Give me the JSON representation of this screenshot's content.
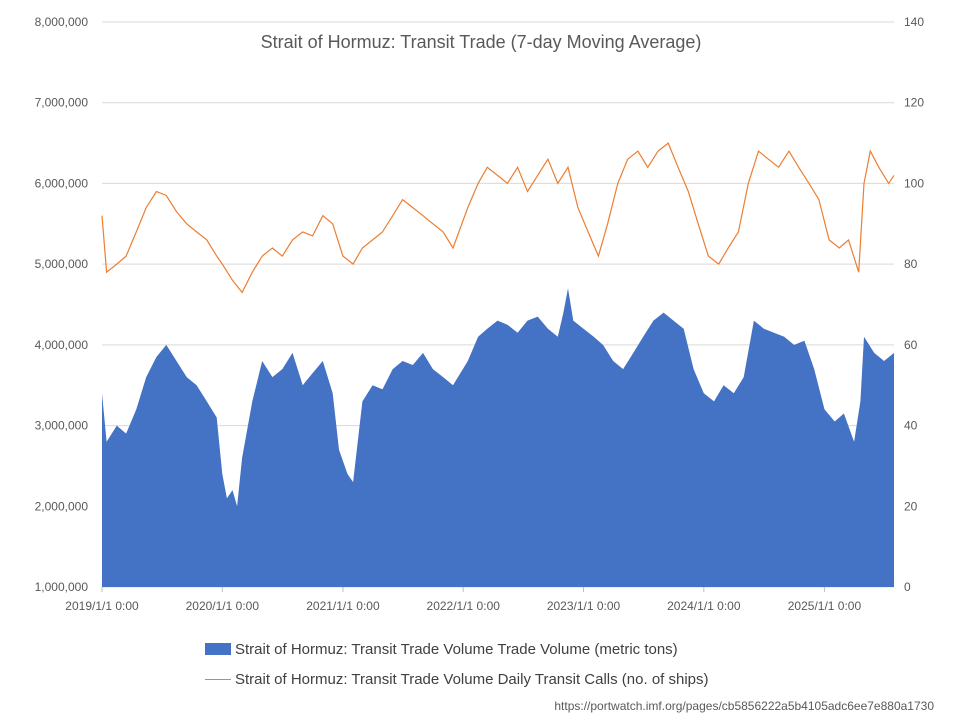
{
  "chart_data": {
    "type": "bar+line",
    "title": "Strait of Hormuz: Transit Trade (7-day Moving Average)",
    "x_tick_labels": [
      "2019/1/1 0:00",
      "2020/1/1 0:00",
      "2021/1/1 0:00",
      "2022/1/1 0:00",
      "2023/1/1 0:00",
      "2024/1/1 0:00",
      "2025/1/1 0:00"
    ],
    "x_range": [
      "2019-01-01",
      "2025-07-31"
    ],
    "y_left": {
      "min": 1000000,
      "max": 8000000,
      "step": 1000000,
      "tick_labels": [
        "1,000,000",
        "2,000,000",
        "3,000,000",
        "4,000,000",
        "5,000,000",
        "6,000,000",
        "7,000,000",
        "8,000,000"
      ]
    },
    "y_right": {
      "min": 0,
      "max": 140,
      "step": 20,
      "tick_labels": [
        "0",
        "20",
        "40",
        "60",
        "80",
        "100",
        "120",
        "140"
      ]
    },
    "grid": true,
    "legend_position": "bottom",
    "series": [
      {
        "name": "Strait of Hormuz: Transit Trade Volume Trade Volume (metric tons)",
        "type": "bar",
        "axis": "left",
        "color": "#4472C4",
        "points": [
          [
            "2019-01-01",
            3400000
          ],
          [
            "2019-01-15",
            2800000
          ],
          [
            "2019-02-15",
            3000000
          ],
          [
            "2019-03-15",
            2900000
          ],
          [
            "2019-04-15",
            3200000
          ],
          [
            "2019-05-15",
            3600000
          ],
          [
            "2019-06-15",
            3850000
          ],
          [
            "2019-07-15",
            4000000
          ],
          [
            "2019-08-15",
            3800000
          ],
          [
            "2019-09-15",
            3600000
          ],
          [
            "2019-10-15",
            3500000
          ],
          [
            "2019-11-15",
            3300000
          ],
          [
            "2019-12-15",
            3100000
          ],
          [
            "2020-01-01",
            2400000
          ],
          [
            "2020-01-15",
            2100000
          ],
          [
            "2020-02-01",
            2200000
          ],
          [
            "2020-02-15",
            2000000
          ],
          [
            "2020-03-01",
            2600000
          ],
          [
            "2020-04-01",
            3300000
          ],
          [
            "2020-05-01",
            3800000
          ],
          [
            "2020-06-01",
            3600000
          ],
          [
            "2020-07-01",
            3700000
          ],
          [
            "2020-08-01",
            3900000
          ],
          [
            "2020-09-01",
            3500000
          ],
          [
            "2020-10-01",
            3650000
          ],
          [
            "2020-11-01",
            3800000
          ],
          [
            "2020-12-01",
            3400000
          ],
          [
            "2020-12-20",
            2700000
          ],
          [
            "2021-01-15",
            2400000
          ],
          [
            "2021-02-01",
            2300000
          ],
          [
            "2021-03-01",
            3300000
          ],
          [
            "2021-04-01",
            3500000
          ],
          [
            "2021-05-01",
            3450000
          ],
          [
            "2021-06-01",
            3700000
          ],
          [
            "2021-07-01",
            3800000
          ],
          [
            "2021-08-01",
            3750000
          ],
          [
            "2021-09-01",
            3900000
          ],
          [
            "2021-10-01",
            3700000
          ],
          [
            "2021-11-01",
            3600000
          ],
          [
            "2021-12-01",
            3500000
          ],
          [
            "2022-01-15",
            3800000
          ],
          [
            "2022-02-15",
            4100000
          ],
          [
            "2022-03-15",
            4200000
          ],
          [
            "2022-04-15",
            4300000
          ],
          [
            "2022-05-15",
            4250000
          ],
          [
            "2022-06-15",
            4150000
          ],
          [
            "2022-07-15",
            4300000
          ],
          [
            "2022-08-15",
            4350000
          ],
          [
            "2022-09-15",
            4200000
          ],
          [
            "2022-10-15",
            4100000
          ],
          [
            "2022-11-01",
            4400000
          ],
          [
            "2022-11-15",
            4700000
          ],
          [
            "2022-12-01",
            4300000
          ],
          [
            "2023-01-01",
            4200000
          ],
          [
            "2023-02-01",
            4100000
          ],
          [
            "2023-03-01",
            4000000
          ],
          [
            "2023-04-01",
            3800000
          ],
          [
            "2023-05-01",
            3700000
          ],
          [
            "2023-06-01",
            3900000
          ],
          [
            "2023-07-01",
            4100000
          ],
          [
            "2023-08-01",
            4300000
          ],
          [
            "2023-09-01",
            4400000
          ],
          [
            "2023-10-01",
            4300000
          ],
          [
            "2023-11-01",
            4200000
          ],
          [
            "2023-12-01",
            3700000
          ],
          [
            "2024-01-01",
            3400000
          ],
          [
            "2024-02-01",
            3300000
          ],
          [
            "2024-03-01",
            3500000
          ],
          [
            "2024-04-01",
            3400000
          ],
          [
            "2024-05-01",
            3600000
          ],
          [
            "2024-06-01",
            4300000
          ],
          [
            "2024-07-01",
            4200000
          ],
          [
            "2024-08-01",
            4150000
          ],
          [
            "2024-09-01",
            4100000
          ],
          [
            "2024-10-01",
            4000000
          ],
          [
            "2024-11-01",
            4050000
          ],
          [
            "2024-12-01",
            3700000
          ],
          [
            "2025-01-01",
            3200000
          ],
          [
            "2025-02-01",
            3050000
          ],
          [
            "2025-03-01",
            3150000
          ],
          [
            "2025-04-01",
            2800000
          ],
          [
            "2025-04-20",
            3300000
          ],
          [
            "2025-05-01",
            4100000
          ],
          [
            "2025-06-01",
            3900000
          ],
          [
            "2025-07-01",
            3800000
          ],
          [
            "2025-07-31",
            3900000
          ]
        ]
      },
      {
        "name": "Strait of Hormuz: Transit Trade Volume Daily Transit Calls (no. of ships)",
        "type": "line",
        "axis": "right",
        "color": "#ED7D31",
        "points": [
          [
            "2019-01-01",
            92
          ],
          [
            "2019-01-15",
            78
          ],
          [
            "2019-02-15",
            80
          ],
          [
            "2019-03-15",
            82
          ],
          [
            "2019-04-15",
            88
          ],
          [
            "2019-05-15",
            94
          ],
          [
            "2019-06-15",
            98
          ],
          [
            "2019-07-15",
            97
          ],
          [
            "2019-08-15",
            93
          ],
          [
            "2019-09-15",
            90
          ],
          [
            "2019-10-15",
            88
          ],
          [
            "2019-11-15",
            86
          ],
          [
            "2019-12-15",
            82
          ],
          [
            "2020-01-01",
            80
          ],
          [
            "2020-02-01",
            76
          ],
          [
            "2020-03-01",
            73
          ],
          [
            "2020-04-01",
            78
          ],
          [
            "2020-05-01",
            82
          ],
          [
            "2020-06-01",
            84
          ],
          [
            "2020-07-01",
            82
          ],
          [
            "2020-08-01",
            86
          ],
          [
            "2020-09-01",
            88
          ],
          [
            "2020-10-01",
            87
          ],
          [
            "2020-11-01",
            92
          ],
          [
            "2020-12-01",
            90
          ],
          [
            "2021-01-01",
            82
          ],
          [
            "2021-02-01",
            80
          ],
          [
            "2021-03-01",
            84
          ],
          [
            "2021-04-01",
            86
          ],
          [
            "2021-05-01",
            88
          ],
          [
            "2021-06-01",
            92
          ],
          [
            "2021-07-01",
            96
          ],
          [
            "2021-08-01",
            94
          ],
          [
            "2021-09-01",
            92
          ],
          [
            "2021-10-01",
            90
          ],
          [
            "2021-11-01",
            88
          ],
          [
            "2021-12-01",
            84
          ],
          [
            "2022-01-15",
            94
          ],
          [
            "2022-02-15",
            100
          ],
          [
            "2022-03-15",
            104
          ],
          [
            "2022-04-15",
            102
          ],
          [
            "2022-05-15",
            100
          ],
          [
            "2022-06-15",
            104
          ],
          [
            "2022-07-15",
            98
          ],
          [
            "2022-08-15",
            102
          ],
          [
            "2022-09-15",
            106
          ],
          [
            "2022-10-15",
            100
          ],
          [
            "2022-11-15",
            104
          ],
          [
            "2022-12-15",
            94
          ],
          [
            "2023-01-15",
            88
          ],
          [
            "2023-02-15",
            82
          ],
          [
            "2023-03-15",
            90
          ],
          [
            "2023-04-15",
            100
          ],
          [
            "2023-05-15",
            106
          ],
          [
            "2023-06-15",
            108
          ],
          [
            "2023-07-15",
            104
          ],
          [
            "2023-08-15",
            108
          ],
          [
            "2023-09-15",
            110
          ],
          [
            "2023-10-15",
            104
          ],
          [
            "2023-11-15",
            98
          ],
          [
            "2023-12-15",
            90
          ],
          [
            "2024-01-15",
            82
          ],
          [
            "2024-02-15",
            80
          ],
          [
            "2024-03-15",
            84
          ],
          [
            "2024-04-15",
            88
          ],
          [
            "2024-05-15",
            100
          ],
          [
            "2024-06-15",
            108
          ],
          [
            "2024-07-15",
            106
          ],
          [
            "2024-08-15",
            104
          ],
          [
            "2024-09-15",
            108
          ],
          [
            "2024-10-15",
            104
          ],
          [
            "2024-11-15",
            100
          ],
          [
            "2024-12-15",
            96
          ],
          [
            "2025-01-15",
            86
          ],
          [
            "2025-02-15",
            84
          ],
          [
            "2025-03-15",
            86
          ],
          [
            "2025-04-15",
            78
          ],
          [
            "2025-05-01",
            100
          ],
          [
            "2025-05-20",
            108
          ],
          [
            "2025-06-15",
            104
          ],
          [
            "2025-07-15",
            100
          ],
          [
            "2025-07-31",
            102
          ]
        ]
      }
    ],
    "source_note": "https://portwatch.imf.org/pages/cb5856222a5b4105adc6ee7e880a1730"
  }
}
